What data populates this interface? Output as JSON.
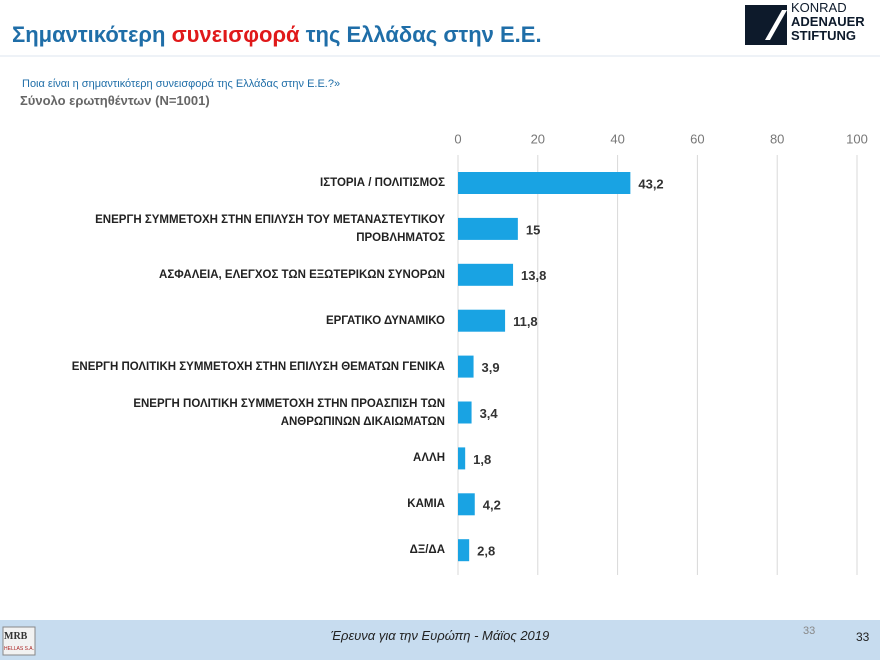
{
  "header": {
    "title_parts": [
      "Σημαντικότερη ",
      "συνεισφορά",
      " της Ελλάδας στην Ε.Ε."
    ],
    "question": "Ποια είναι η σημαντικότερη συνεισφορά της Ελλάδας στην Ε.Ε.?»",
    "base": "Σύνολο ερωτηθέντων (N=1001)",
    "logo_lines": [
      "KONRAD",
      "ADENAUER",
      "STIFTUNG"
    ]
  },
  "chart_data": {
    "type": "bar",
    "orientation": "horizontal",
    "color": "#19a3e3",
    "categories": [
      "ΙΣΤΟΡΙΑ / ΠΟΛΙΤΙΣΜΟΣ",
      "ΕΝΕΡΓΗ ΣΥΜΜΕΤΟΧΗ ΣΤΗΝ ΕΠΙΛΥΣΗ ΤΟΥ ΜΕΤΑΝΑΣΤΕΥΤΙΚΟΥ\nΠΡΟΒΛΗΜΑΤΟΣ",
      "ΑΣΦΑΛΕΙΑ, ΕΛΕΓΧΟΣ ΤΩΝ ΕΞΩΤΕΡΙΚΩΝ ΣΥΝΟΡΩΝ",
      "ΕΡΓΑΤΙΚΟ ΔΥΝΑΜΙΚΟ",
      "ΕΝΕΡΓΗ ΠΟΛΙΤΙΚΗ ΣΥΜΜΕΤΟΧΗ ΣΤΗΝ ΕΠΙΛΥΣΗ ΘΕΜΑΤΩΝ ΓΕΝΙΚΑ",
      "ΕΝΕΡΓΗ ΠΟΛΙΤΙΚΗ ΣΥΜΜΕΤΟΧΗ ΣΤΗΝ ΠΡΟΑΣΠΙΣΗ ΤΩΝ\nΑΝΘΡΩΠΙΝΩΝ ΔΙΚΑΙΩΜΑΤΩΝ",
      "ΑΛΛΗ",
      "ΚΑΜΙΑ",
      "ΔΞ/ΔΑ"
    ],
    "values": [
      43.2,
      15,
      13.8,
      11.8,
      3.9,
      3.4,
      1.8,
      4.2,
      2.8
    ],
    "value_labels": [
      "43,2",
      "15",
      "13,8",
      "11,8",
      "3,9",
      "3,4",
      "1,8",
      "4,2",
      "2,8"
    ],
    "xlim": [
      0,
      100
    ],
    "xticks": [
      0,
      20,
      40,
      60,
      80,
      100
    ],
    "grid": true
  },
  "footer": {
    "source": "Έρευνα για την Ευρώπη - Μάϊος 2019",
    "page_small": "33",
    "page": "33",
    "logo": "MRB",
    "logo_sub": "HELLAS S.A."
  }
}
